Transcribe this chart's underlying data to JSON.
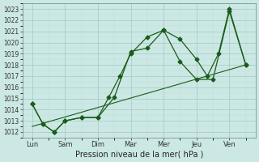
{
  "title": "",
  "xlabel": "Pression niveau de la mer( hPa )",
  "ylabel": "",
  "background_color": "#cce8e4",
  "plot_bg_color": "#cce8e4",
  "grid_major_color": "#aaccc8",
  "grid_minor_color": "#bbddd9",
  "line_color": "#1a5c1a",
  "ylim": [
    1011.5,
    1023.5
  ],
  "yticks": [
    1012,
    1013,
    1014,
    1015,
    1016,
    1017,
    1018,
    1019,
    1020,
    1021,
    1022,
    1023
  ],
  "x_labels": [
    "Lun",
    "Sam",
    "Dim",
    "Mar",
    "Mer",
    "Jeu",
    "Ven"
  ],
  "x_positions": [
    0,
    1,
    2,
    3,
    4,
    5,
    6
  ],
  "xlim": [
    -0.3,
    6.8
  ],
  "series1_x": [
    0,
    0.33,
    0.67,
    1,
    1.5,
    2,
    2.33,
    2.67,
    3,
    3.5,
    4,
    4.5,
    5,
    5.5,
    6,
    6.5
  ],
  "series1_y": [
    1014.5,
    1012.7,
    1012.0,
    1013.0,
    1013.3,
    1013.3,
    1015.1,
    1017.0,
    1019.0,
    1020.5,
    1021.1,
    1018.3,
    1016.7,
    1016.7,
    1022.8,
    1018.0
  ],
  "series2_x": [
    0,
    0.33,
    0.67,
    1,
    1.5,
    2,
    2.5,
    3,
    3.5,
    4,
    4.5,
    5,
    5.33,
    5.67,
    6,
    6.5
  ],
  "series2_y": [
    1014.5,
    1012.7,
    1012.0,
    1013.0,
    1013.3,
    1013.3,
    1015.1,
    1019.2,
    1019.5,
    1021.1,
    1020.3,
    1018.5,
    1017.0,
    1019.0,
    1023.0,
    1018.0
  ],
  "series3_x": [
    0,
    6.5
  ],
  "series3_y": [
    1012.5,
    1018.0
  ]
}
